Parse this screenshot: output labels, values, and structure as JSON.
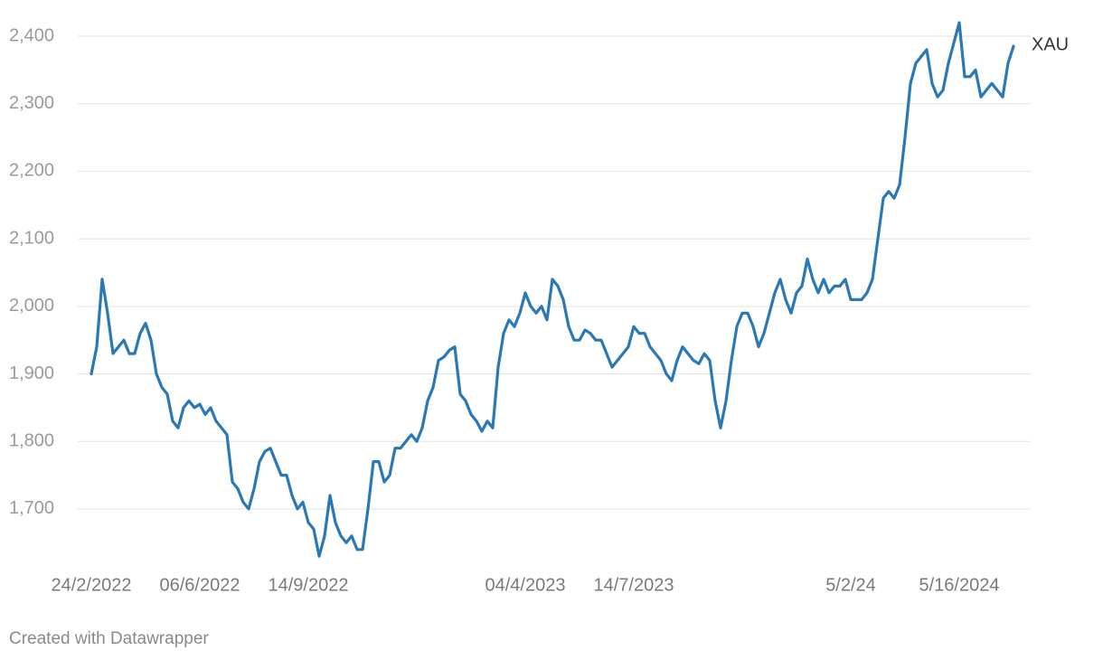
{
  "chart_data": {
    "type": "line",
    "categories": [
      "24/2/2022",
      null,
      null,
      null,
      null,
      null,
      null,
      null,
      null,
      null,
      null,
      null,
      null,
      null,
      null,
      null,
      null,
      null,
      null,
      null,
      "06/6/2022",
      null,
      null,
      null,
      null,
      null,
      null,
      null,
      null,
      null,
      null,
      null,
      null,
      null,
      null,
      null,
      null,
      null,
      null,
      null,
      "14/9/2022",
      null,
      null,
      null,
      null,
      null,
      null,
      null,
      null,
      null,
      null,
      null,
      null,
      null,
      null,
      null,
      null,
      null,
      null,
      null,
      null,
      null,
      null,
      null,
      null,
      null,
      null,
      null,
      null,
      null,
      null,
      null,
      null,
      null,
      null,
      null,
      null,
      null,
      null,
      null,
      "04/4/2023",
      null,
      null,
      null,
      null,
      null,
      null,
      null,
      null,
      null,
      null,
      null,
      null,
      null,
      null,
      null,
      null,
      null,
      null,
      null,
      "14/7/2023",
      null,
      null,
      null,
      null,
      null,
      null,
      null,
      null,
      null,
      null,
      null,
      null,
      null,
      null,
      null,
      null,
      null,
      null,
      null,
      null,
      null,
      null,
      null,
      null,
      null,
      null,
      null,
      null,
      null,
      null,
      null,
      null,
      null,
      null,
      null,
      null,
      null,
      null,
      null,
      "5/2/24",
      null,
      null,
      null,
      null,
      null,
      null,
      null,
      null,
      null,
      null,
      null,
      null,
      null,
      null,
      null,
      null,
      null,
      null,
      null,
      "5/16/2024",
      null,
      null,
      null,
      null,
      null,
      null,
      null,
      null,
      null,
      null
    ],
    "series": [
      {
        "name": "XAU",
        "color": "#2a78b5",
        "values": [
          1900,
          1940,
          2040,
          1990,
          1930,
          1940,
          1950,
          1930,
          1930,
          1960,
          1975,
          1950,
          1900,
          1880,
          1870,
          1830,
          1820,
          1850,
          1860,
          1850,
          1855,
          1840,
          1850,
          1830,
          1820,
          1810,
          1740,
          1730,
          1710,
          1700,
          1730,
          1770,
          1785,
          1790,
          1770,
          1750,
          1750,
          1720,
          1700,
          1710,
          1680,
          1670,
          1630,
          1660,
          1720,
          1680,
          1660,
          1650,
          1660,
          1640,
          1640,
          1700,
          1770,
          1770,
          1740,
          1750,
          1790,
          1790,
          1800,
          1810,
          1800,
          1820,
          1860,
          1880,
          1920,
          1925,
          1935,
          1940,
          1870,
          1860,
          1840,
          1830,
          1815,
          1830,
          1820,
          1910,
          1960,
          1980,
          1970,
          1990,
          2020,
          2000,
          1990,
          2000,
          1980,
          2040,
          2030,
          2010,
          1970,
          1950,
          1950,
          1965,
          1960,
          1950,
          1950,
          1930,
          1910,
          1920,
          1930,
          1940,
          1970,
          1960,
          1960,
          1940,
          1930,
          1920,
          1900,
          1890,
          1920,
          1940,
          1930,
          1920,
          1915,
          1930,
          1920,
          1860,
          1820,
          1860,
          1920,
          1970,
          1990,
          1990,
          1970,
          1940,
          1960,
          1990,
          2020,
          2040,
          2010,
          1990,
          2020,
          2030,
          2070,
          2040,
          2020,
          2040,
          2020,
          2030,
          2030,
          2040,
          2010,
          2010,
          2010,
          2020,
          2040,
          2100,
          2160,
          2170,
          2160,
          2180,
          2250,
          2330,
          2360,
          2370,
          2380,
          2330,
          2310,
          2320,
          2360,
          2390,
          2420,
          2340,
          2340,
          2350,
          2310,
          2320,
          2330,
          2320,
          2310,
          2360,
          2385
        ]
      }
    ],
    "ylim": [
      1620,
      2430
    ],
    "yticks": [
      {
        "value": 1700,
        "label": "1,700"
      },
      {
        "value": 1800,
        "label": "1,800"
      },
      {
        "value": 1900,
        "label": "1,900"
      },
      {
        "value": 2000,
        "label": "2,000"
      },
      {
        "value": 2100,
        "label": "2,100"
      },
      {
        "value": 2200,
        "label": "2,200"
      },
      {
        "value": 2300,
        "label": "2,300"
      },
      {
        "value": 2400,
        "label": "2,400"
      }
    ],
    "grid": true,
    "credit": "Created with Datawrapper"
  }
}
